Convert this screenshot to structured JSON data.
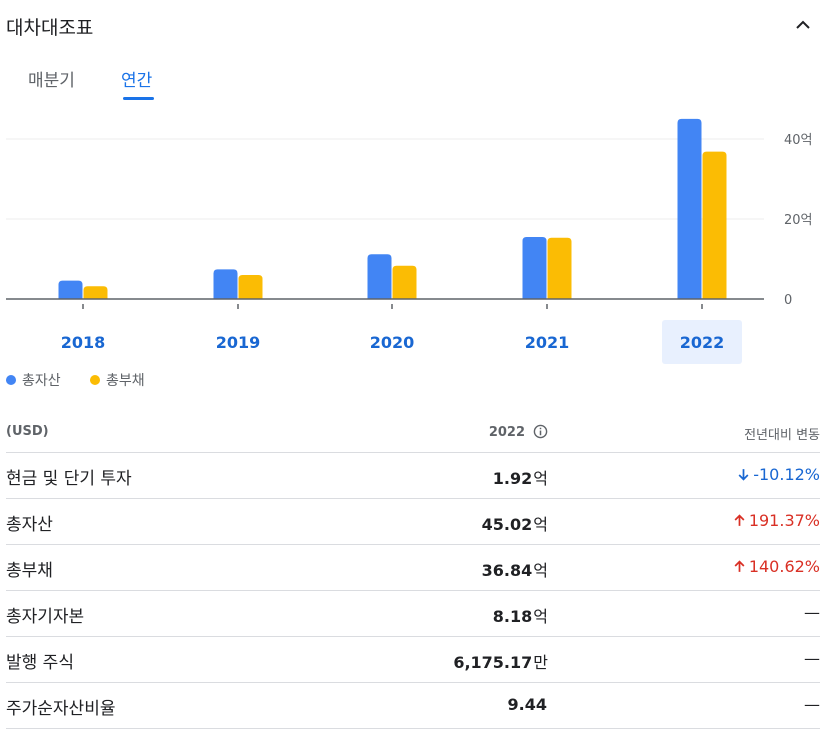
{
  "header": {
    "title": "대차대조표"
  },
  "tabs": [
    {
      "label": "매분기"
    },
    {
      "label": "연간"
    }
  ],
  "chart_data": {
    "type": "bar",
    "categories": [
      "2018",
      "2019",
      "2020",
      "2021",
      "2022"
    ],
    "selected_category": "2022",
    "series": [
      {
        "name": "총자산",
        "color": "#4285f4",
        "values": [
          4.6,
          7.4,
          11.2,
          15.5,
          45.02
        ]
      },
      {
        "name": "총부채",
        "color": "#fbbc04",
        "values": [
          3.2,
          6.0,
          8.3,
          15.3,
          36.84
        ]
      }
    ],
    "ylim": [
      0,
      45
    ],
    "y_ticks": [
      "0",
      "20억",
      "40억"
    ],
    "grid": true,
    "legend_position": "bottom-left"
  },
  "legend": [
    {
      "label": "총자산",
      "color": "#4285f4"
    },
    {
      "label": "총부채",
      "color": "#fbbc04"
    }
  ],
  "table": {
    "head": {
      "unit": "(USD)",
      "year": "2022",
      "change": "전년대비 변동"
    },
    "rows": [
      {
        "label": "현금 및 단기 투자",
        "value": "1.92",
        "unit": "억",
        "change": "-10.12%",
        "dir": "down"
      },
      {
        "label": "총자산",
        "value": "45.02",
        "unit": "억",
        "change": "191.37%",
        "dir": "up"
      },
      {
        "label": "총부채",
        "value": "36.84",
        "unit": "억",
        "change": "140.62%",
        "dir": "up"
      },
      {
        "label": "총자기자본",
        "value": "8.18",
        "unit": "억",
        "change": "—",
        "dir": "none"
      },
      {
        "label": "발행 주식",
        "value": "6,175.17",
        "unit": "만",
        "change": "—",
        "dir": "none"
      },
      {
        "label": "주가순자산비율",
        "value": "9.44",
        "unit": "",
        "change": "—",
        "dir": "none"
      }
    ]
  }
}
